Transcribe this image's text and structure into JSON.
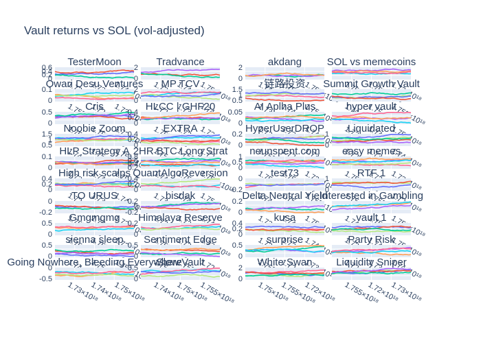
{
  "chart_data": {
    "type": "line",
    "title": "Vault returns vs SOL (vol-adjusted)",
    "grid": true,
    "series_colors": [
      "#636efa",
      "#EF553B",
      "#00cc96",
      "#ab63fa",
      "#FFA15A",
      "#19d3f3",
      "#FF6692",
      "#B6E880"
    ],
    "x_tick_labels": [
      "1.72×10¹⁸",
      "1.73×10¹⁸",
      "1.74×10¹⁸",
      "1.75×10¹⁸",
      "1.755×10¹⁸"
    ],
    "panels": [
      {
        "name": "TesterMoon",
        "yticks": [
          "0.6",
          "0.4",
          "0.2",
          "0"
        ]
      },
      {
        "name": "Tradvance",
        "yticks": [
          "2",
          "0"
        ]
      },
      {
        "name": "akdang",
        "yticks": [
          "2",
          "0"
        ]
      },
      {
        "name": "SOL vs memecoins",
        "yticks": []
      },
      {
        "name": "Owari Desu Ventures",
        "yticks": [
          "0.1",
          "0"
        ]
      },
      {
        "name": "MP TCV",
        "yticks": [
          "2",
          "0"
        ]
      },
      {
        "name": "链路投资",
        "yticks": [
          "1.5",
          "1",
          "0.5"
        ]
      },
      {
        "name": "Summit Growth Vault",
        "yticks": []
      },
      {
        "name": "Cris",
        "yticks": [
          "0.5",
          "0"
        ]
      },
      {
        "name": "HLCC | GHF20",
        "yticks": [
          "0.4",
          "0.2",
          "0"
        ]
      },
      {
        "name": "AI Aplha Plus",
        "yticks": [
          "0.05",
          "0"
        ]
      },
      {
        "name": "hyper vault",
        "yticks": []
      },
      {
        "name": "Noobie Zoom",
        "yticks": [
          "1.5",
          "1",
          "0.5"
        ]
      },
      {
        "name": "EXTRA",
        "yticks": [
          "0.4",
          "0.2",
          "0"
        ]
      },
      {
        "name": "HyperUserDROP",
        "yticks": [
          "0.2",
          "0"
        ]
      },
      {
        "name": "Liquidated",
        "yticks": [
          "1",
          "0"
        ]
      },
      {
        "name": "HLP Strategy A",
        "yticks": [
          "0.1",
          "0"
        ]
      },
      {
        "name": "2HR BTC Long Strat",
        "yticks": [
          "0.8",
          "0.6",
          "0.4",
          "0.2"
        ]
      },
      {
        "name": "neunspent.com",
        "yticks": [
          "1",
          "0.5",
          "0"
        ]
      },
      {
        "name": "easy memes",
        "yticks": []
      },
      {
        "name": "High risk scalps",
        "yticks": [
          "0.4",
          "0.2",
          "0"
        ]
      },
      {
        "name": "QuantAlgoReversion",
        "yticks": [
          "0.4",
          "0.2",
          "0"
        ]
      },
      {
        "name": "test73",
        "yticks": [
          "0",
          "-0.2"
        ]
      },
      {
        "name": "RTF 1",
        "yticks": [
          "1",
          "0"
        ]
      },
      {
        "name": "TO URUS",
        "yticks": [
          "0",
          "-0.2"
        ]
      },
      {
        "name": "bisdak",
        "yticks": [
          "0.2",
          "0",
          "-0.2"
        ]
      },
      {
        "name": "Delta Neutral Yield",
        "yticks": [
          "0.2",
          "0"
        ]
      },
      {
        "name": "Interested in Gambling",
        "yticks": []
      },
      {
        "name": "Gmgmgmg",
        "yticks": [
          "0.5",
          "0"
        ]
      },
      {
        "name": "Himalaya Reserve",
        "yticks": [
          "0.2",
          "0"
        ]
      },
      {
        "name": "kusa",
        "yticks": [
          "0.4",
          "0.2",
          "0"
        ]
      },
      {
        "name": "vault 1",
        "yticks": []
      },
      {
        "name": "sienna sleep",
        "yticks": [
          "0.5",
          "0"
        ]
      },
      {
        "name": "Sentiment Edge",
        "yticks": [
          "0.5",
          "0"
        ]
      },
      {
        "name": "surprise",
        "yticks": [
          "0.5",
          "0"
        ]
      },
      {
        "name": "Party Risk",
        "yticks": []
      },
      {
        "name": "Going Nowhere, Bleeding Everywhere",
        "yticks": [
          "0",
          "-0.5"
        ]
      },
      {
        "name": "Slow Vault",
        "yticks": [
          "0.5",
          "0"
        ]
      },
      {
        "name": "White Swan",
        "yticks": [
          "2",
          "0"
        ]
      },
      {
        "name": "Liquidity Sniper",
        "yticks": []
      }
    ]
  }
}
